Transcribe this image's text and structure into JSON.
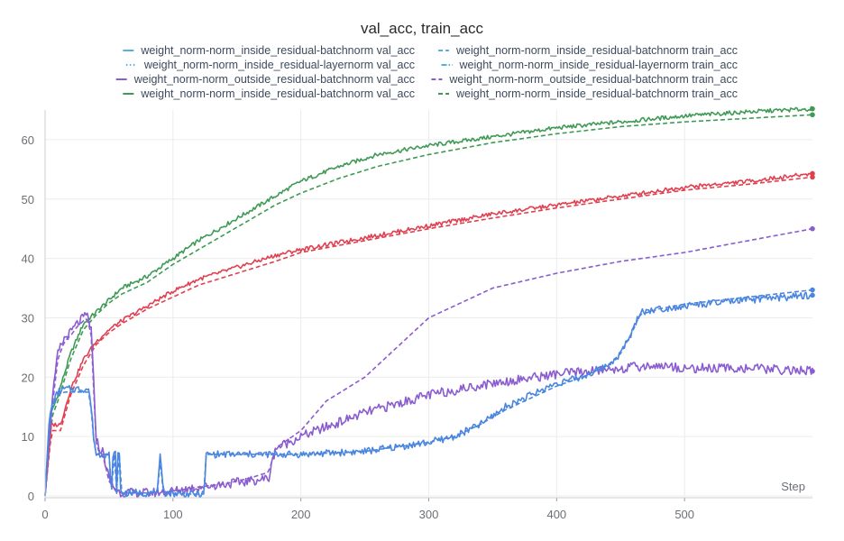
{
  "chart_data": {
    "type": "line",
    "title": "val_acc, train_acc",
    "xlabel": "Step",
    "ylabel": "",
    "xlim": [
      0,
      600
    ],
    "ylim": [
      0,
      65
    ],
    "x_ticks": [
      0,
      100,
      200,
      300,
      400,
      500
    ],
    "y_ticks": [
      0,
      10,
      20,
      30,
      40,
      50,
      60
    ],
    "grid": true,
    "legend_position": "top",
    "legend": [
      {
        "label": "weight_norm-norm_inside_residual-batchnorm val_acc",
        "color": "#5aaee0",
        "dash": "solid"
      },
      {
        "label": "weight_norm-norm_inside_residual-batchnorm train_acc",
        "color": "#5aaee0",
        "dash": "dashed"
      },
      {
        "label": "weight_norm-norm_inside_residual-layernorm val_acc",
        "color": "#5aaee0",
        "dash": "dotted"
      },
      {
        "label": "weight_norm-norm_inside_residual-layernorm train_acc",
        "color": "#5aaee0",
        "dash": "dashdot"
      },
      {
        "label": "weight_norm-norm_outside_residual-batchnorm val_acc",
        "color": "#8a5ccf",
        "dash": "solid"
      },
      {
        "label": "weight_norm-norm_outside_residual-batchnorm train_acc",
        "color": "#8a5ccf",
        "dash": "dashed"
      },
      {
        "label": "weight_norm-norm_inside_residual-batchnorm val_acc",
        "color": "#3f9a55",
        "dash": "solid"
      },
      {
        "label": "weight_norm-norm_inside_residual-batchnorm train_acc",
        "color": "#3f9a55",
        "dash": "dashed"
      }
    ],
    "series": [
      {
        "name": "green val_acc",
        "color": "#3f9a55",
        "dash": "solid",
        "noise": 0.35,
        "x": [
          0,
          5,
          10,
          20,
          30,
          40,
          50,
          60,
          80,
          100,
          120,
          140,
          160,
          180,
          200,
          230,
          260,
          300,
          350,
          400,
          450,
          500,
          550,
          600
        ],
        "y": [
          0,
          14,
          17,
          24,
          29,
          31,
          33,
          35,
          37,
          40,
          43,
          45.5,
          48,
          50.5,
          53,
          55.5,
          57.5,
          59,
          60.5,
          62,
          63,
          64,
          64.7,
          65.2
        ]
      },
      {
        "name": "green train_acc",
        "color": "#3f9a55",
        "dash": "dashed",
        "noise": 0,
        "x": [
          0,
          5,
          10,
          20,
          30,
          40,
          50,
          60,
          80,
          100,
          120,
          140,
          160,
          180,
          200,
          230,
          260,
          300,
          350,
          400,
          450,
          500,
          550,
          600
        ],
        "y": [
          0,
          13,
          16,
          23,
          28,
          30.5,
          32.5,
          34,
          36,
          39,
          41.5,
          44,
          46.5,
          49,
          51,
          53.5,
          55.5,
          57.5,
          59.5,
          61,
          62.2,
          63,
          63.6,
          64.2
        ]
      },
      {
        "name": "red val_acc",
        "color": "#e04050",
        "dash": "solid",
        "noise": 0.35,
        "x": [
          0,
          5,
          10,
          12,
          20,
          30,
          40,
          50,
          60,
          80,
          100,
          120,
          150,
          180,
          200,
          250,
          300,
          350,
          400,
          450,
          500,
          550,
          600
        ],
        "y": [
          0,
          12,
          12,
          12,
          18,
          23,
          26,
          28,
          29.5,
          32,
          34.5,
          36.5,
          38.5,
          40.5,
          41.5,
          43.5,
          45.5,
          47.5,
          49,
          50.5,
          52,
          53,
          54.3
        ]
      },
      {
        "name": "red train_acc",
        "color": "#e04050",
        "dash": "dashed",
        "noise": 0,
        "x": [
          0,
          5,
          10,
          12,
          20,
          30,
          40,
          50,
          60,
          80,
          100,
          120,
          150,
          180,
          200,
          250,
          300,
          350,
          400,
          450,
          500,
          550,
          600
        ],
        "y": [
          0,
          11,
          11,
          11,
          17,
          22,
          25.5,
          27.5,
          29,
          31.5,
          33.5,
          35.5,
          37.5,
          39.5,
          41,
          43,
          45,
          46.8,
          48.5,
          50,
          51.5,
          52.5,
          53.7
        ]
      },
      {
        "name": "purple val_acc",
        "color": "#8a5ccf",
        "dash": "solid",
        "noise": 0.8,
        "x": [
          0,
          5,
          10,
          15,
          20,
          25,
          30,
          33,
          36,
          40,
          42,
          45,
          50,
          55,
          60,
          80,
          100,
          120,
          140,
          160,
          175,
          180,
          200,
          250,
          300,
          350,
          400,
          450,
          480,
          500,
          550,
          600
        ],
        "y": [
          0,
          15,
          24,
          26.5,
          27.5,
          29,
          30,
          30.5,
          28,
          10,
          8,
          7.5,
          3,
          1,
          0.5,
          0.5,
          0.8,
          1.5,
          2,
          2.5,
          3,
          8,
          10,
          14,
          17,
          19,
          20.5,
          21.5,
          22,
          21.5,
          21.5,
          21
        ]
      },
      {
        "name": "purple train_acc",
        "color": "#8a5ccf",
        "dash": "dashed",
        "noise": 0,
        "x": [
          0,
          5,
          10,
          15,
          20,
          25,
          30,
          33,
          36,
          40,
          42,
          45,
          50,
          55,
          60,
          80,
          100,
          120,
          140,
          160,
          175,
          180,
          200,
          220,
          250,
          280,
          300,
          330,
          350,
          400,
          450,
          500,
          550,
          600
        ],
        "y": [
          0,
          14,
          23,
          26,
          27,
          28.5,
          29.5,
          30,
          27,
          9,
          7.5,
          7,
          2.5,
          1,
          0.5,
          0.5,
          0.8,
          1.5,
          2,
          3,
          4,
          8,
          11,
          16,
          20,
          26,
          30,
          33,
          35,
          37.5,
          39.5,
          41,
          43,
          45
        ]
      },
      {
        "name": "blue val_acc",
        "color": "#4a86e0",
        "dash": "solid",
        "noise": 0.6,
        "x": [
          0,
          3,
          5,
          8,
          10,
          15,
          20,
          25,
          30,
          34,
          36,
          38,
          40,
          45,
          50,
          51,
          52,
          53,
          55,
          56,
          57,
          58,
          59,
          60,
          70,
          85,
          88,
          90,
          92,
          94,
          96,
          110,
          124,
          125,
          126,
          200,
          250,
          300,
          320,
          340,
          360,
          380,
          400,
          420,
          440,
          450,
          460,
          465,
          480,
          500,
          550,
          600
        ],
        "y": [
          0,
          12,
          15,
          16.5,
          17.5,
          18,
          18,
          18,
          18,
          18,
          15,
          10,
          7,
          7,
          7,
          3,
          1,
          7,
          7,
          1,
          7,
          7,
          1,
          0.5,
          0.5,
          0.5,
          1,
          6.5,
          1.5,
          0.5,
          0.5,
          0.3,
          0.3,
          3,
          7,
          7,
          7.5,
          9,
          10,
          12,
          15,
          17,
          19,
          20,
          22,
          24,
          28,
          31,
          31.5,
          32,
          33,
          33.8
        ]
      },
      {
        "name": "blue train_acc",
        "color": "#4a86e0",
        "dash": "dashed",
        "noise": 0,
        "x": [
          0,
          3,
          5,
          8,
          10,
          15,
          20,
          25,
          30,
          34,
          36,
          38,
          40,
          45,
          50,
          51,
          52,
          53,
          55,
          56,
          57,
          58,
          59,
          60,
          70,
          85,
          88,
          90,
          92,
          94,
          96,
          110,
          124,
          125,
          126,
          200,
          250,
          300,
          320,
          340,
          360,
          380,
          400,
          420,
          440,
          450,
          460,
          465,
          480,
          500,
          550,
          600
        ],
        "y": [
          0,
          11,
          14.5,
          16,
          17,
          17.5,
          17.5,
          17.5,
          17.5,
          17.5,
          14.5,
          9.5,
          7,
          7,
          7,
          2.5,
          1,
          7,
          7,
          1,
          7,
          7,
          1,
          0.5,
          0.5,
          0.5,
          1,
          6,
          1.5,
          0.5,
          0.5,
          0.3,
          0.3,
          3,
          7,
          7,
          7.5,
          9,
          10,
          12,
          14.5,
          16.5,
          18.5,
          20,
          22,
          24,
          28,
          30.5,
          31.5,
          32.3,
          33.5,
          34.7
        ]
      }
    ]
  }
}
